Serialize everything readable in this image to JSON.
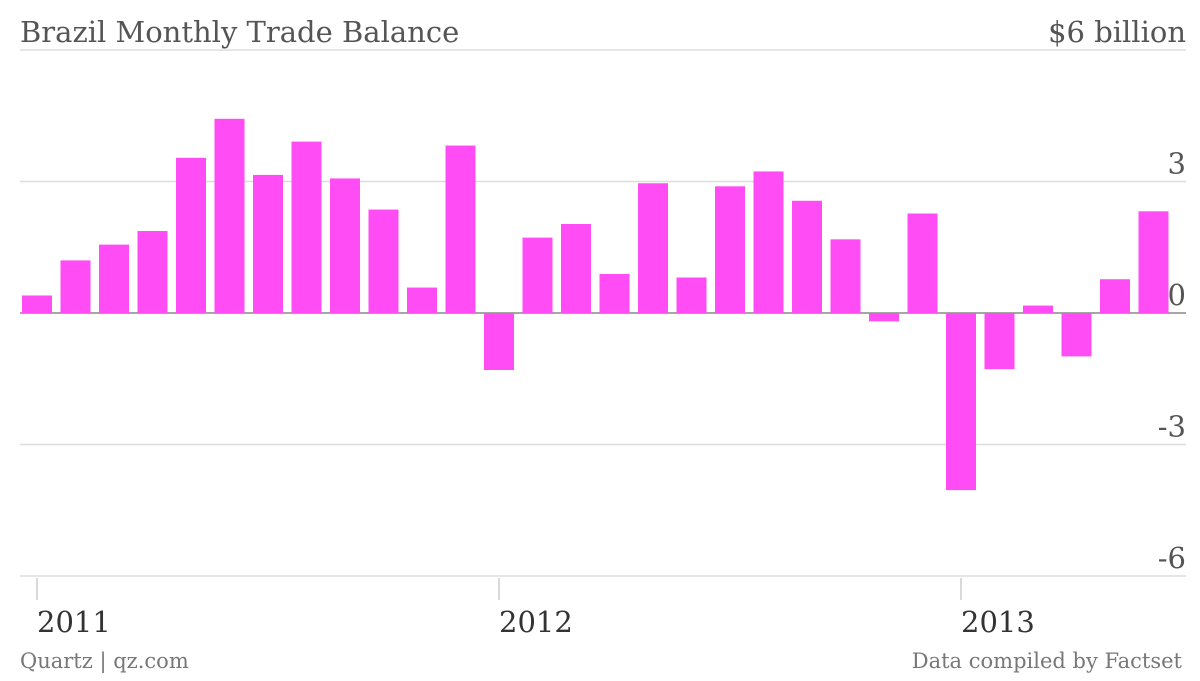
{
  "title": "Brazil Monthly Trade Balance",
  "footer": {
    "source_left": "Quartz | qz.com",
    "source_right": "Data compiled by Factset"
  },
  "colors": {
    "bar": "#ff4cf4",
    "grid": "#dddddd",
    "zero_line": "#888888",
    "text": "#555555"
  },
  "chart_data": {
    "type": "bar",
    "title": "Brazil Monthly Trade Balance",
    "unit": "$ billion",
    "xlabel": "",
    "ylabel": "",
    "ylim": [
      -6,
      6
    ],
    "y_ticks": [
      {
        "value": 6,
        "label": "$6 billion"
      },
      {
        "value": 3,
        "label": "3"
      },
      {
        "value": 0,
        "label": "0"
      },
      {
        "value": -3,
        "label": "-3"
      },
      {
        "value": -6,
        "label": "-6"
      }
    ],
    "x_ticks": [
      {
        "category_index": 0,
        "label": "2011"
      },
      {
        "category_index": 12,
        "label": "2012"
      },
      {
        "category_index": 24,
        "label": "2013"
      }
    ],
    "grid": true,
    "legend": "none",
    "categories": [
      "2011-01",
      "2011-02",
      "2011-03",
      "2011-04",
      "2011-05",
      "2011-06",
      "2011-07",
      "2011-08",
      "2011-09",
      "2011-10",
      "2011-11",
      "2011-12",
      "2012-01",
      "2012-02",
      "2012-03",
      "2012-04",
      "2012-05",
      "2012-06",
      "2012-07",
      "2012-08",
      "2012-09",
      "2012-10",
      "2012-11",
      "2012-12",
      "2013-01",
      "2013-02",
      "2013-03",
      "2013-04",
      "2013-05",
      "2013-06"
    ],
    "values": [
      0.4,
      1.2,
      1.56,
      1.87,
      3.54,
      4.43,
      3.15,
      3.91,
      3.07,
      2.36,
      0.58,
      3.82,
      -1.3,
      1.72,
      2.03,
      0.89,
      2.96,
      0.81,
      2.89,
      3.23,
      2.56,
      1.68,
      -0.19,
      2.27,
      -4.04,
      -1.28,
      0.17,
      -0.99,
      0.77,
      2.32
    ]
  }
}
